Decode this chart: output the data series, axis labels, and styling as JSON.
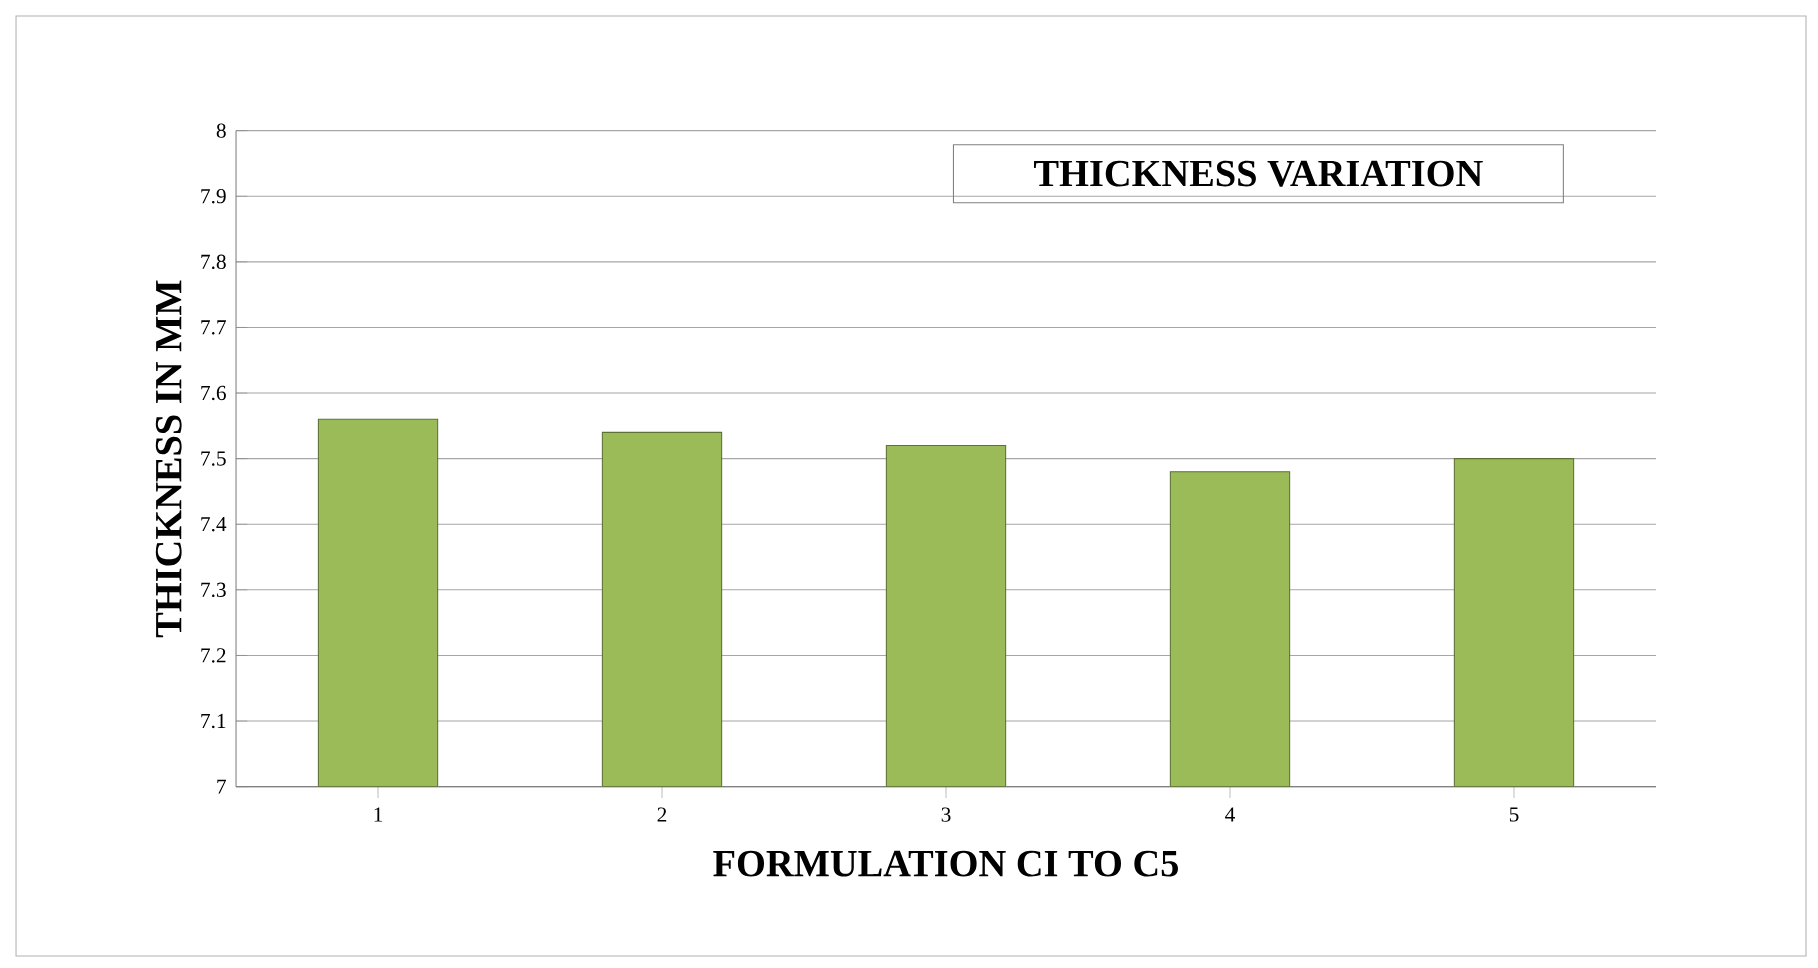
{
  "chart_data": {
    "type": "bar",
    "title": "THICKNESS  VARIATION",
    "xlabel": "FORMULATION   CI TO C5",
    "ylabel": "THICKNESS IN MM",
    "categories": [
      "1",
      "2",
      "3",
      "4",
      "5"
    ],
    "values": [
      7.56,
      7.54,
      7.52,
      7.48,
      7.5
    ],
    "color": "#9bbb59",
    "ylim": [
      7,
      8
    ],
    "yticks": [
      7,
      7.1,
      7.2,
      7.3,
      7.4,
      7.5,
      7.6,
      7.7,
      7.8,
      7.9,
      8
    ],
    "grid": "y"
  }
}
